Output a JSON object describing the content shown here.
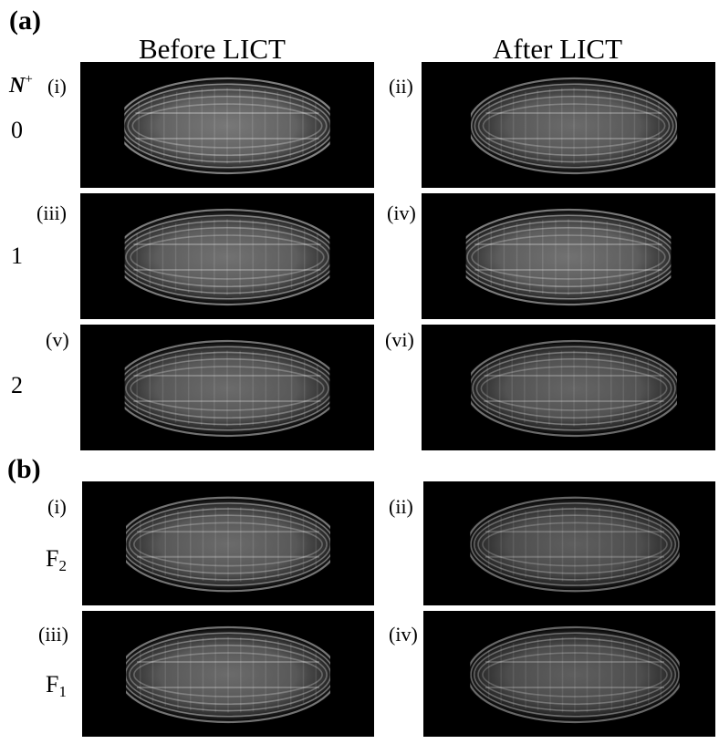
{
  "panel_a": {
    "tag": "(a)",
    "headers": [
      "Before LICT",
      "After LICT"
    ],
    "row_title": "N",
    "row_title_sup": "+",
    "rows": [
      {
        "value": "0",
        "left": "(i)",
        "right": "(ii)"
      },
      {
        "value": "1",
        "left": "(iii)",
        "right": "(iv)"
      },
      {
        "value": "2",
        "left": "(v)",
        "right": "(vi)"
      }
    ]
  },
  "panel_b": {
    "tag": "(b)",
    "rows": [
      {
        "value": "F",
        "sub": "2",
        "left": "(i)",
        "right": "(ii)"
      },
      {
        "value": "F",
        "sub": "1",
        "left": "(iii)",
        "right": "(iv)"
      }
    ]
  }
}
